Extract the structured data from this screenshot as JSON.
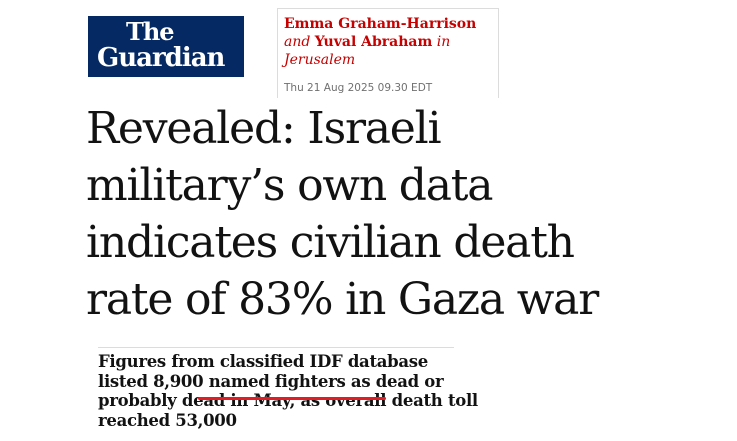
{
  "logo": {
    "line1": "The",
    "line2": "Guardian"
  },
  "byline": {
    "author1": "Emma Graham-Harrison",
    "and": "and",
    "author2": "Yuval Abraham",
    "in": "in",
    "location": "Jerusalem",
    "date": "Thu 21 Aug 2025 09.30 EDT"
  },
  "headline": "Revealed: Israeli military’s own data indicates civilian death rate of 83% in Gaza war",
  "standfirst": {
    "part1": "Figures from classified IDF database listed 8,900 ",
    "highlight": "named fighters",
    "part2": " as dead or probably dead in May, as overall death toll reached 53,000"
  },
  "colors": {
    "brand": "#052962",
    "byline": "#c70000",
    "annotation": "#e31b23"
  }
}
